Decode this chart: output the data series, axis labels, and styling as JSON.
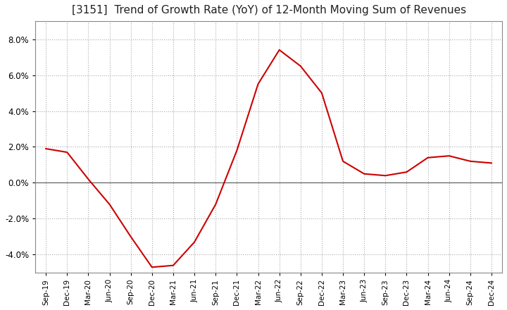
{
  "title": "[3151]  Trend of Growth Rate (YoY) of 12-Month Moving Sum of Revenues",
  "title_fontsize": 11,
  "line_color": "#cc0000",
  "background_color": "#ffffff",
  "grid_color": "#aaaaaa",
  "zero_line_color": "#555555",
  "ylim": [
    -0.05,
    0.09
  ],
  "yticks": [
    -0.04,
    -0.02,
    0.0,
    0.02,
    0.04,
    0.06,
    0.08
  ],
  "x_labels": [
    "Sep-19",
    "Dec-19",
    "Mar-20",
    "Jun-20",
    "Sep-20",
    "Dec-20",
    "Mar-21",
    "Jun-21",
    "Sep-21",
    "Dec-21",
    "Mar-22",
    "Jun-22",
    "Sep-22",
    "Dec-22",
    "Mar-23",
    "Jun-23",
    "Sep-23",
    "Dec-23",
    "Mar-24",
    "Jun-24",
    "Sep-24",
    "Dec-24"
  ],
  "y_values": [
    0.019,
    0.017,
    0.002,
    -0.012,
    -0.03,
    -0.047,
    -0.046,
    -0.033,
    -0.012,
    0.018,
    0.055,
    0.074,
    0.065,
    0.05,
    0.012,
    0.005,
    0.004,
    0.006,
    0.014,
    0.015,
    0.012,
    0.011
  ]
}
